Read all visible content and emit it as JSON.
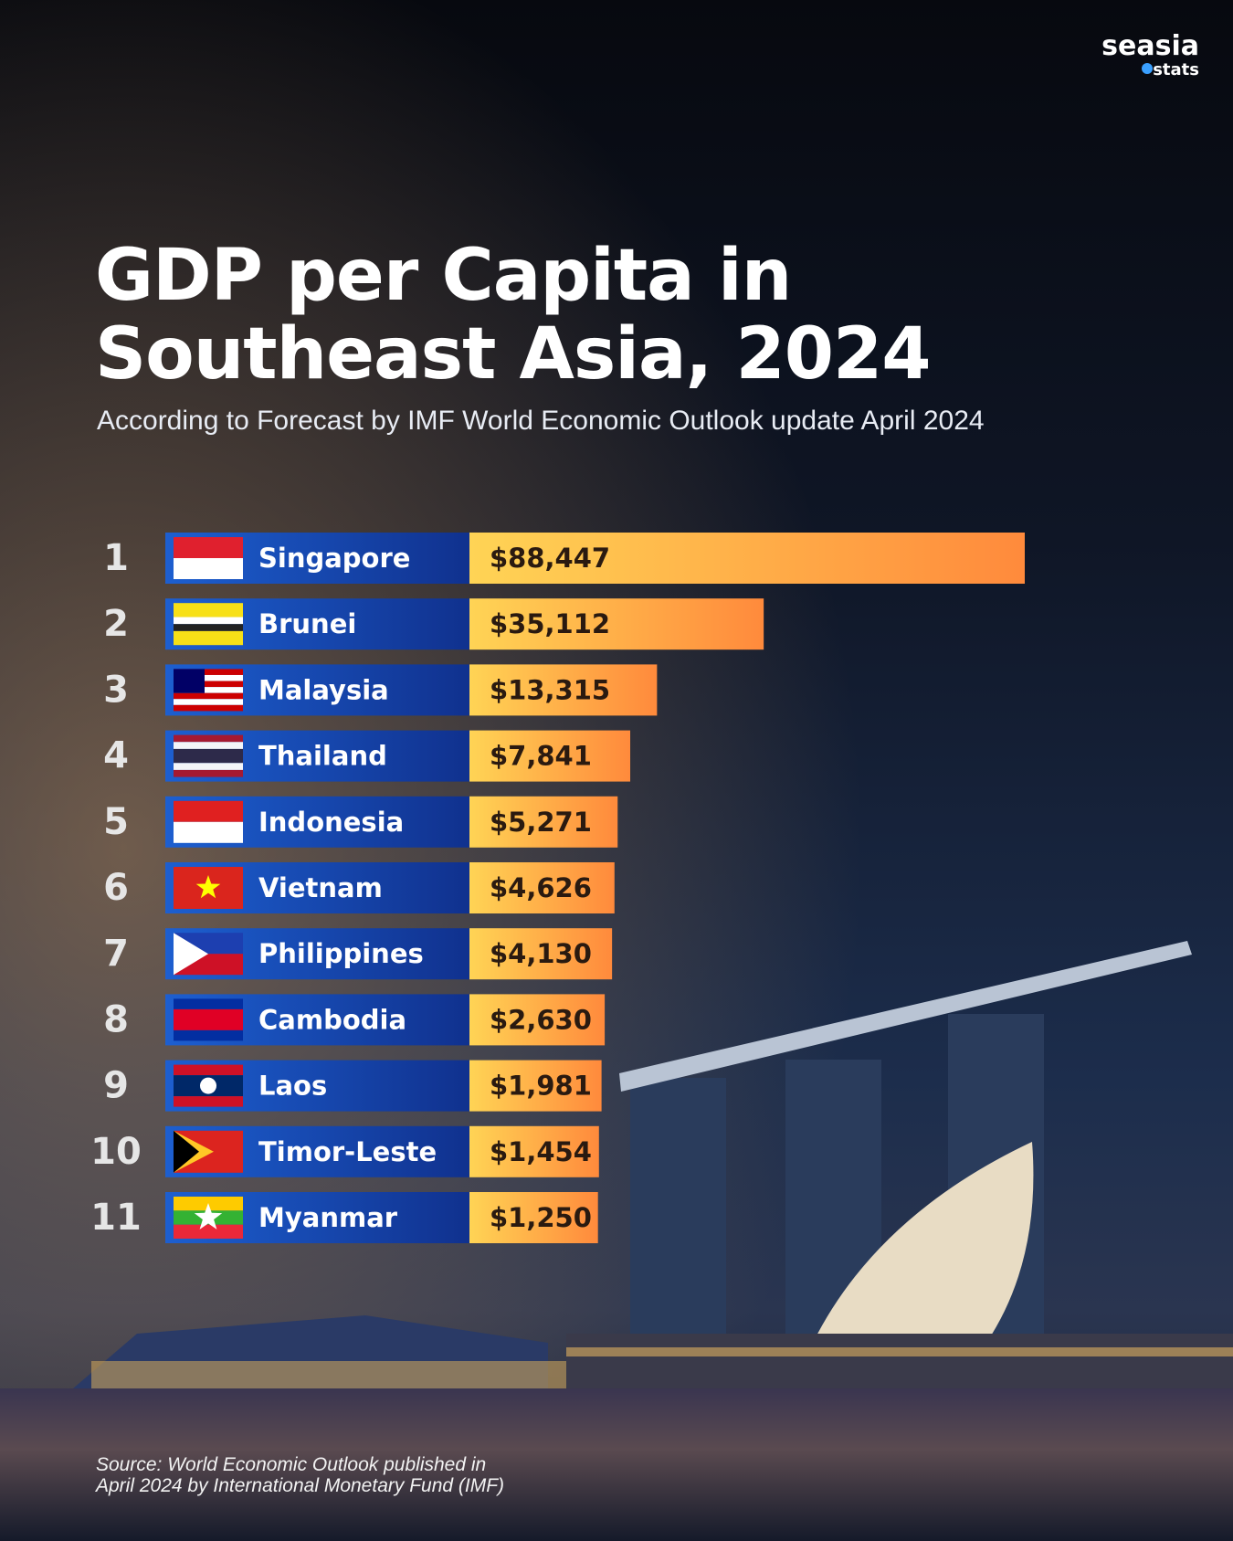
{
  "logo": {
    "name": "seasia",
    "tag": "stats"
  },
  "chart_data": {
    "type": "bar",
    "orientation": "horizontal",
    "title_lines": [
      "GDP per Capita in",
      "Southeast Asia, 2024"
    ],
    "subtitle": "According to Forecast by IMF World Economic Outlook update April 2024",
    "ranks": [
      1,
      2,
      3,
      4,
      5,
      6,
      7,
      8,
      9,
      10,
      11
    ],
    "categories": [
      "Singapore",
      "Brunei",
      "Malaysia",
      "Thailand",
      "Indonesia",
      "Vietnam",
      "Philippines",
      "Cambodia",
      "Laos",
      "Timor-Leste",
      "Myanmar"
    ],
    "values": [
      88447,
      35112,
      13315,
      7841,
      5271,
      4626,
      4130,
      2630,
      1981,
      1454,
      1250
    ],
    "value_labels": [
      "$88,447",
      "$35,112",
      "$13,315",
      "$7,841",
      "$5,271",
      "$4,626",
      "$4,130",
      "$2,630",
      "$1,981",
      "$1,454",
      "$1,250"
    ],
    "source_lines": [
      "Source: World Economic Outlook published in",
      "April 2024 by International Monetary Fund (IMF)"
    ]
  }
}
